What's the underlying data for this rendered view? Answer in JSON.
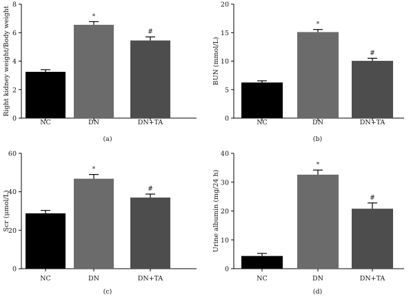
{
  "chart_data": [
    {
      "type": "bar",
      "panel": "(a)",
      "ylabel": "Right kidney weight/Body weight",
      "categories": [
        "NC",
        "DN",
        "DN+TA"
      ],
      "values": [
        3.25,
        6.55,
        5.45
      ],
      "errors": [
        0.15,
        0.22,
        0.25
      ],
      "annotations": [
        "",
        "*",
        "#"
      ],
      "yticks": [
        "0",
        "2",
        "4",
        "6",
        "8"
      ],
      "ylim": [
        0,
        8
      ],
      "colors": [
        "#000000",
        "#6b6b6b",
        "#4d4d4d"
      ]
    },
    {
      "type": "bar",
      "panel": "(b)",
      "ylabel": "BUN (mmol/L)",
      "categories": [
        "NC",
        "DN",
        "DN+TA"
      ],
      "values": [
        6.25,
        15.1,
        10.05
      ],
      "errors": [
        0.3,
        0.45,
        0.45
      ],
      "annotations": [
        "",
        "*",
        "#"
      ],
      "yticks": [
        "0",
        "5",
        "10",
        "15",
        "20"
      ],
      "ylim": [
        0,
        20
      ],
      "colors": [
        "#000000",
        "#6b6b6b",
        "#4d4d4d"
      ]
    },
    {
      "type": "bar",
      "panel": "(c)",
      "ylabel": "Scr (μmol/L)",
      "categories": [
        "NC",
        "DN",
        "DN+TA"
      ],
      "values": [
        28.8,
        46.8,
        37.0
      ],
      "errors": [
        1.5,
        2.2,
        1.8
      ],
      "annotations": [
        "",
        "*",
        "#"
      ],
      "yticks": [
        "0",
        "20",
        "40",
        "60"
      ],
      "ylim": [
        0,
        60
      ],
      "colors": [
        "#000000",
        "#6b6b6b",
        "#4d4d4d"
      ]
    },
    {
      "type": "bar",
      "panel": "(d)",
      "ylabel": "Urine albumin (mg/24 h)",
      "categories": [
        "NC",
        "DN",
        "DN+TA"
      ],
      "values": [
        4.4,
        32.6,
        20.8
      ],
      "errors": [
        0.9,
        1.6,
        2.0
      ],
      "annotations": [
        "",
        "*",
        "#"
      ],
      "yticks": [
        "0",
        "10",
        "20",
        "30",
        "40"
      ],
      "ylim": [
        0,
        40
      ],
      "colors": [
        "#000000",
        "#6b6b6b",
        "#4d4d4d"
      ]
    }
  ]
}
